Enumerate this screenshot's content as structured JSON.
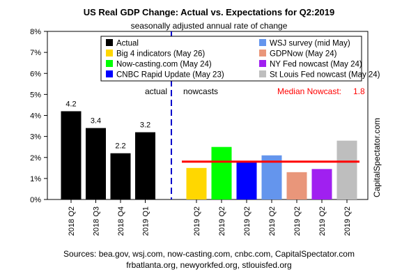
{
  "chart_data": {
    "type": "bar",
    "title": "US Real GDP Change: Actual vs. Expectations for Q2:2019",
    "subtitle": "seasonally adjusted annual rate of change",
    "ylim": [
      0,
      8
    ],
    "y_ticks": [
      "0%",
      "1%",
      "2%",
      "3%",
      "4%",
      "5%",
      "6%",
      "7%",
      "8%"
    ],
    "grid": false,
    "legend_position": "top",
    "legend": [
      {
        "label": "Actual",
        "color": "#000000"
      },
      {
        "label": "WSJ survey (mid May)",
        "color": "#6495ed"
      },
      {
        "label": "Big 4 indicators (May 26)",
        "color": "#ffd700"
      },
      {
        "label": "GDPNow (May 24)",
        "color": "#e9967a"
      },
      {
        "label": "Now-casting.com (May 24)",
        "color": "#00ff00"
      },
      {
        "label": "NY Fed nowcast (May 24)",
        "color": "#a020f0"
      },
      {
        "label": "CNBC Rapid Update (May 23)",
        "color": "#0000ff"
      },
      {
        "label": "St Louis Fed nowcast (May 24)",
        "color": "#bebebe"
      }
    ],
    "actual": {
      "categories": [
        "2018 Q2",
        "2018 Q3",
        "2018 Q4",
        "2019 Q1"
      ],
      "values": [
        4.2,
        3.4,
        2.2,
        3.2
      ],
      "labels": [
        "4.2",
        "3.4",
        "2.2",
        "3.2"
      ],
      "color": "#000000"
    },
    "nowcasts": {
      "categories": [
        "2019 Q2",
        "2019 Q2",
        "2019 Q2",
        "2019 Q2",
        "2019 Q2",
        "2019 Q2",
        "2019 Q2"
      ],
      "values": [
        1.5,
        2.5,
        1.8,
        2.1,
        1.3,
        1.45,
        2.8
      ],
      "colors": [
        "#ffd700",
        "#00ff00",
        "#0000ff",
        "#6495ed",
        "#e9967a",
        "#a020f0",
        "#bebebe"
      ]
    },
    "median_nowcast": {
      "label": "Median Nowcast:",
      "value": 1.8,
      "value_label": "1.8",
      "color": "#ff0000"
    },
    "section_labels": {
      "actual": "actual",
      "nowcasts": "nowcasts"
    },
    "sources": [
      "Sources: bea.gov, wsj.com, now-casting.com, cnbc.com, CapitalSpectator.com",
      "frbatlanta.org, newyorkfed.org, stlouisfed.org"
    ],
    "watermark": "CapitalSpectator.com"
  }
}
